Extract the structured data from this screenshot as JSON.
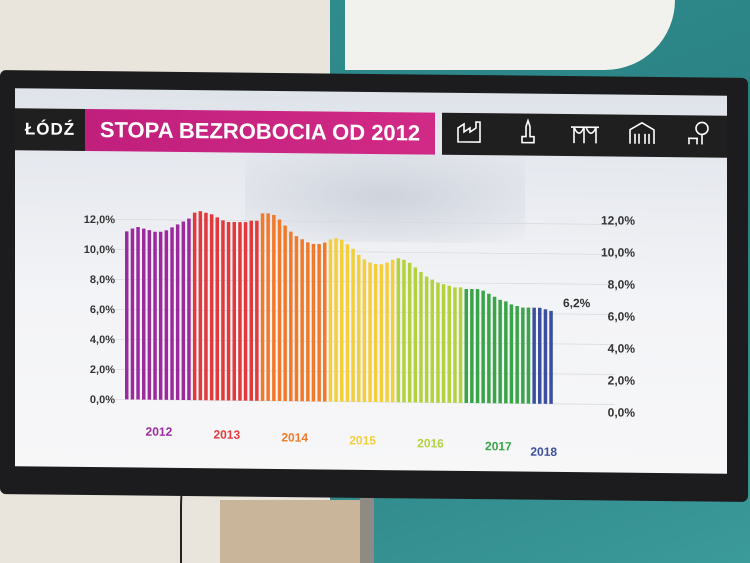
{
  "header": {
    "logo_text": "ŁÓDŹ",
    "title": "STOPA BEZROBOCIA OD 2012",
    "icons": [
      "factory-icon",
      "monument-icon",
      "bridge-icon",
      "palace-icon",
      "tree-bench-icon"
    ]
  },
  "chart_data": {
    "type": "bar",
    "title": "STOPA BEZROBOCIA OD 2012",
    "ylim": [
      0,
      12
    ],
    "left_ticks": [
      "0,0%",
      "2,0%",
      "4,0%",
      "6,0%",
      "8,0%",
      "10,0%",
      "12,0%"
    ],
    "right_ticks": [
      "0,0%",
      "2,0%",
      "4,0%",
      "6,0%",
      "8,0%",
      "10,0%",
      "12,0%"
    ],
    "last_value_label": "6,2%",
    "grid": true,
    "years": [
      {
        "label": "2012",
        "color": "#9b2a9e",
        "values": [
          11.2,
          11.4,
          11.5,
          11.4,
          11.3,
          11.2,
          11.2,
          11.3,
          11.5,
          11.7,
          11.9,
          12.1
        ]
      },
      {
        "label": "2013",
        "color": "#e23a3c",
        "values": [
          12.5,
          12.6,
          12.5,
          12.4,
          12.2,
          12.0,
          11.9,
          11.9,
          11.9,
          11.9,
          12.0,
          12.0
        ]
      },
      {
        "label": "2014",
        "color": "#f07a2a",
        "values": [
          12.5,
          12.5,
          12.4,
          12.1,
          11.7,
          11.3,
          11.0,
          10.8,
          10.6,
          10.5,
          10.5,
          10.6
        ]
      },
      {
        "label": "2015",
        "color": "#f4cf3c",
        "values": [
          10.8,
          10.9,
          10.8,
          10.5,
          10.2,
          9.8,
          9.5,
          9.3,
          9.2,
          9.2,
          9.3,
          9.5
        ]
      },
      {
        "label": "2016",
        "color": "#b3d23e",
        "values": [
          9.6,
          9.5,
          9.3,
          9.0,
          8.7,
          8.4,
          8.2,
          8.0,
          7.9,
          7.8,
          7.7,
          7.7
        ]
      },
      {
        "label": "2017",
        "color": "#3aa548",
        "values": [
          7.6,
          7.6,
          7.6,
          7.5,
          7.3,
          7.1,
          6.9,
          6.8,
          6.6,
          6.5,
          6.4,
          6.4
        ]
      },
      {
        "label": "2018",
        "color": "#3c4f9e",
        "values": [
          6.4,
          6.4,
          6.3,
          6.2
        ]
      }
    ]
  }
}
